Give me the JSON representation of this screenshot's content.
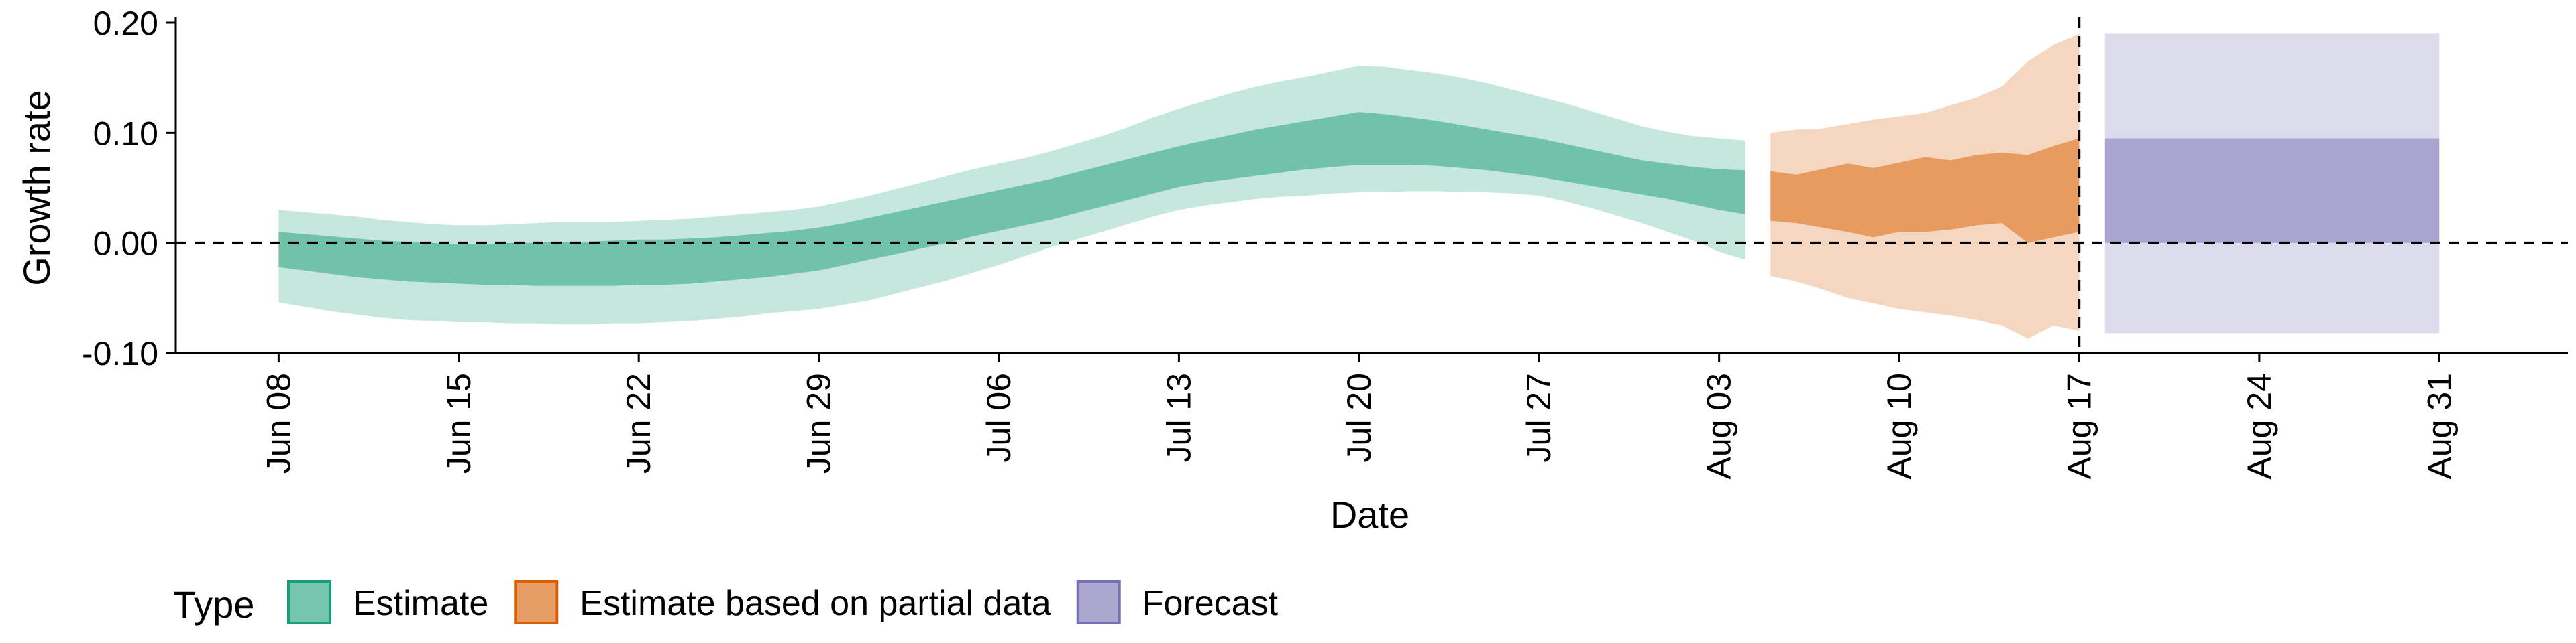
{
  "chart_data": {
    "type": "area",
    "title": "",
    "xlabel": "Date",
    "ylabel": "Growth rate",
    "ylim": [
      -0.1,
      0.2
    ],
    "y_ticks": [
      {
        "value": -0.1,
        "label": "-0.10"
      },
      {
        "value": 0.0,
        "label": "0.00"
      },
      {
        "value": 0.1,
        "label": "0.10"
      },
      {
        "value": 0.2,
        "label": "0.20"
      }
    ],
    "xlim": [
      "2020-06-04",
      "2020-09-05"
    ],
    "x_ticks": [
      {
        "date": "2020-06-08",
        "label": "Jun 08"
      },
      {
        "date": "2020-06-15",
        "label": "Jun 15"
      },
      {
        "date": "2020-06-22",
        "label": "Jun 22"
      },
      {
        "date": "2020-06-29",
        "label": "Jun 29"
      },
      {
        "date": "2020-07-06",
        "label": "Jul 06"
      },
      {
        "date": "2020-07-13",
        "label": "Jul 13"
      },
      {
        "date": "2020-07-20",
        "label": "Jul 20"
      },
      {
        "date": "2020-07-27",
        "label": "Jul 27"
      },
      {
        "date": "2020-08-03",
        "label": "Aug 03"
      },
      {
        "date": "2020-08-10",
        "label": "Aug 10"
      },
      {
        "date": "2020-08-17",
        "label": "Aug 17"
      },
      {
        "date": "2020-08-24",
        "label": "Aug 24"
      },
      {
        "date": "2020-08-31",
        "label": "Aug 31"
      }
    ],
    "reference_lines": [
      {
        "axis": "y",
        "value": 0,
        "style": "dashed"
      },
      {
        "axis": "x",
        "date": "2020-08-17",
        "style": "dashed"
      }
    ],
    "legend": {
      "title": "Type",
      "position": "bottom-left"
    },
    "series": [
      {
        "name": "Estimate",
        "color": "#1b9e77",
        "dates": [
          "2020-06-08",
          "2020-06-09",
          "2020-06-10",
          "2020-06-11",
          "2020-06-12",
          "2020-06-13",
          "2020-06-14",
          "2020-06-15",
          "2020-06-16",
          "2020-06-17",
          "2020-06-18",
          "2020-06-19",
          "2020-06-20",
          "2020-06-21",
          "2020-06-22",
          "2020-06-23",
          "2020-06-24",
          "2020-06-25",
          "2020-06-26",
          "2020-06-27",
          "2020-06-28",
          "2020-06-29",
          "2020-06-30",
          "2020-07-01",
          "2020-07-02",
          "2020-07-03",
          "2020-07-04",
          "2020-07-05",
          "2020-07-06",
          "2020-07-07",
          "2020-07-08",
          "2020-07-09",
          "2020-07-10",
          "2020-07-11",
          "2020-07-12",
          "2020-07-13",
          "2020-07-14",
          "2020-07-15",
          "2020-07-16",
          "2020-07-17",
          "2020-07-18",
          "2020-07-19",
          "2020-07-20",
          "2020-07-21",
          "2020-07-22",
          "2020-07-23",
          "2020-07-24",
          "2020-07-25",
          "2020-07-26",
          "2020-07-27",
          "2020-07-28",
          "2020-07-29",
          "2020-07-30",
          "2020-07-31",
          "2020-08-01",
          "2020-08-02",
          "2020-08-03",
          "2020-08-04"
        ],
        "lower_90": [
          -0.054,
          -0.058,
          -0.062,
          -0.065,
          -0.068,
          -0.07,
          -0.071,
          -0.072,
          -0.072,
          -0.073,
          -0.073,
          -0.074,
          -0.074,
          -0.073,
          -0.073,
          -0.072,
          -0.071,
          -0.069,
          -0.067,
          -0.064,
          -0.062,
          -0.06,
          -0.056,
          -0.052,
          -0.046,
          -0.04,
          -0.034,
          -0.027,
          -0.02,
          -0.012,
          -0.004,
          0.003,
          0.01,
          0.017,
          0.024,
          0.03,
          0.034,
          0.037,
          0.04,
          0.042,
          0.043,
          0.045,
          0.046,
          0.046,
          0.047,
          0.047,
          0.046,
          0.046,
          0.045,
          0.043,
          0.038,
          0.032,
          0.025,
          0.018,
          0.01,
          0.002,
          -0.008,
          -0.015
        ],
        "upper_90": [
          0.03,
          0.028,
          0.026,
          0.024,
          0.021,
          0.019,
          0.017,
          0.016,
          0.016,
          0.017,
          0.018,
          0.019,
          0.019,
          0.019,
          0.02,
          0.021,
          0.022,
          0.024,
          0.026,
          0.028,
          0.03,
          0.033,
          0.038,
          0.043,
          0.049,
          0.055,
          0.061,
          0.067,
          0.072,
          0.077,
          0.083,
          0.09,
          0.097,
          0.105,
          0.114,
          0.122,
          0.129,
          0.136,
          0.142,
          0.147,
          0.151,
          0.156,
          0.161,
          0.16,
          0.157,
          0.154,
          0.15,
          0.145,
          0.139,
          0.133,
          0.127,
          0.12,
          0.113,
          0.106,
          0.101,
          0.097,
          0.095,
          0.093
        ],
        "lower_50": [
          -0.022,
          -0.025,
          -0.028,
          -0.031,
          -0.033,
          -0.035,
          -0.036,
          -0.037,
          -0.038,
          -0.038,
          -0.039,
          -0.039,
          -0.039,
          -0.039,
          -0.038,
          -0.038,
          -0.037,
          -0.035,
          -0.033,
          -0.031,
          -0.028,
          -0.025,
          -0.02,
          -0.015,
          -0.01,
          -0.005,
          0.0,
          0.006,
          0.011,
          0.016,
          0.021,
          0.027,
          0.033,
          0.039,
          0.045,
          0.051,
          0.055,
          0.058,
          0.061,
          0.064,
          0.067,
          0.069,
          0.071,
          0.071,
          0.071,
          0.07,
          0.068,
          0.066,
          0.063,
          0.06,
          0.056,
          0.052,
          0.048,
          0.044,
          0.04,
          0.035,
          0.03,
          0.026
        ],
        "upper_50": [
          0.01,
          0.008,
          0.006,
          0.004,
          0.002,
          0.001,
          0.0,
          -0.001,
          -0.001,
          0.0,
          0.0,
          0.001,
          0.001,
          0.002,
          0.003,
          0.003,
          0.004,
          0.005,
          0.007,
          0.009,
          0.011,
          0.014,
          0.018,
          0.023,
          0.028,
          0.033,
          0.038,
          0.043,
          0.048,
          0.053,
          0.058,
          0.064,
          0.07,
          0.076,
          0.082,
          0.088,
          0.093,
          0.098,
          0.103,
          0.107,
          0.111,
          0.115,
          0.119,
          0.117,
          0.114,
          0.111,
          0.107,
          0.103,
          0.099,
          0.095,
          0.09,
          0.085,
          0.08,
          0.075,
          0.072,
          0.069,
          0.067,
          0.066
        ]
      },
      {
        "name": "Estimate based on partial data",
        "color": "#d95f02",
        "dates": [
          "2020-08-05",
          "2020-08-06",
          "2020-08-07",
          "2020-08-08",
          "2020-08-09",
          "2020-08-10",
          "2020-08-11",
          "2020-08-12",
          "2020-08-13",
          "2020-08-14",
          "2020-08-15",
          "2020-08-16",
          "2020-08-17"
        ],
        "lower_90": [
          -0.03,
          -0.035,
          -0.042,
          -0.05,
          -0.055,
          -0.06,
          -0.063,
          -0.066,
          -0.07,
          -0.075,
          -0.087,
          -0.075,
          -0.08
        ],
        "upper_90": [
          0.1,
          0.103,
          0.104,
          0.108,
          0.112,
          0.115,
          0.118,
          0.125,
          0.132,
          0.142,
          0.165,
          0.18,
          0.19
        ],
        "lower_50": [
          0.02,
          0.018,
          0.014,
          0.01,
          0.005,
          0.01,
          0.01,
          0.012,
          0.016,
          0.018,
          0.0,
          0.005,
          0.01
        ],
        "upper_50": [
          0.065,
          0.062,
          0.067,
          0.072,
          0.068,
          0.073,
          0.078,
          0.075,
          0.08,
          0.082,
          0.08,
          0.088,
          0.095
        ]
      },
      {
        "name": "Forecast",
        "color": "#7570b3",
        "dates": [
          "2020-08-18",
          "2020-08-31"
        ],
        "lower_90": [
          -0.082,
          -0.082
        ],
        "upper_90": [
          0.19,
          0.19
        ],
        "lower_50": [
          0.0,
          0.0
        ],
        "upper_50": [
          0.095,
          0.095
        ]
      }
    ]
  }
}
